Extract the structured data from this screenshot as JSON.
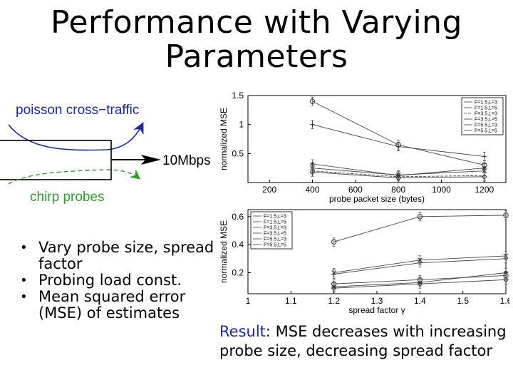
{
  "slide": {
    "title": "Performance with Varying Parameters",
    "bullets": [
      "Vary probe size, spread factor",
      "Probing load const.",
      "Mean squared error (MSE) of estimates"
    ],
    "result_keyword": "Result",
    "result_text": ": MSE decreases with increasing probe size, decreasing spread factor"
  },
  "diagram": {
    "top_label": "poisson cross−traffic",
    "bottom_label": "chirp probes",
    "link_label": "10Mbps",
    "colors": {
      "cross_traffic": "#1c2a9c",
      "probes": "#2e9c2e",
      "top_label": "#1c2a9c",
      "bottom_label": "#2e9c2e"
    }
  },
  "chart_data": [
    {
      "type": "line",
      "xlabel": "probe packet size (bytes)",
      "ylabel": "normalized MSE",
      "xlim": [
        100,
        1300
      ],
      "ylim": [
        0,
        1.5
      ],
      "xticks": [
        200,
        400,
        600,
        800,
        1000,
        1200
      ],
      "yticks": [
        0.5,
        1,
        1.5
      ],
      "legend_position": "top-right",
      "x": [
        200,
        400,
        800,
        1200
      ],
      "series": [
        {
          "name": "F=1.5,L=3",
          "marker": "x",
          "dash": "",
          "values": [
            null,
            0.25,
            0.13,
            0.2
          ]
        },
        {
          "name": "F=1.5,L=5",
          "marker": "+",
          "dash": "",
          "values": [
            null,
            1.0,
            0.62,
            0.45
          ]
        },
        {
          "name": "F=3.5,L=3",
          "marker": "none",
          "dash": "4 2",
          "values": [
            null,
            0.2,
            0.1,
            0.12
          ]
        },
        {
          "name": "F=3.5,L=5",
          "marker": "*",
          "dash": "",
          "values": [
            null,
            0.32,
            0.12,
            0.25
          ]
        },
        {
          "name": "F=5.5,L=3",
          "marker": "diamond",
          "dash": "",
          "values": [
            null,
            0.18,
            0.08,
            0.1
          ]
        },
        {
          "name": "F=5.5,L=5",
          "marker": "circle",
          "dash": "",
          "values": [
            null,
            1.4,
            0.65,
            0.3
          ]
        }
      ]
    },
    {
      "type": "line",
      "xlabel": "spread factor γ",
      "ylabel": "normalized MSE",
      "xlim": [
        1,
        1.6
      ],
      "ylim": [
        0.05,
        0.65
      ],
      "xticks": [
        1,
        1.1,
        1.2,
        1.3,
        1.4,
        1.5,
        1.6
      ],
      "xticklabels": [
        "1",
        "1.1",
        "1.2",
        "1.3",
        "1.4",
        "1.5",
        "1.6"
      ],
      "yticks": [
        0.2,
        0.4,
        0.6
      ],
      "legend_position": "top-left",
      "x": [
        1.2,
        1.4,
        1.6
      ],
      "series": [
        {
          "name": "F=1.5,L=3",
          "marker": "x",
          "dash": "",
          "values": [
            0.2,
            0.29,
            0.32
          ]
        },
        {
          "name": "F=1.5,L=5",
          "marker": "+",
          "dash": "",
          "values": [
            0.19,
            0.27,
            0.3
          ]
        },
        {
          "name": "F=3.5,L=3",
          "marker": "circle",
          "dash": "",
          "values": [
            0.12,
            0.15,
            0.18
          ]
        },
        {
          "name": "F=3.5,L=5",
          "marker": "*",
          "dash": "",
          "values": [
            0.1,
            0.13,
            0.2
          ]
        },
        {
          "name": "F=5.5,L=3",
          "marker": "diamond",
          "dash": "",
          "values": [
            0.09,
            0.12,
            0.15
          ]
        },
        {
          "name": "F=5.5,L=5",
          "marker": "circle",
          "dash": "",
          "values": [
            0.42,
            0.6,
            0.61
          ]
        }
      ]
    }
  ]
}
